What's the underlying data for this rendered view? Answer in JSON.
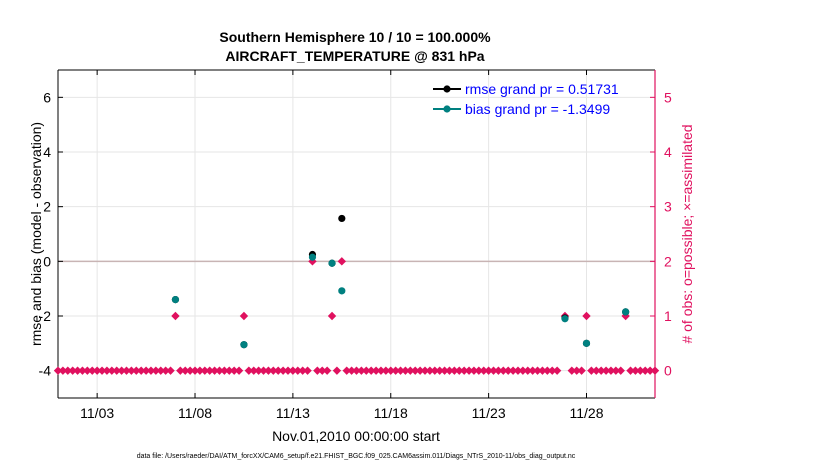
{
  "colors": {
    "rmse": "#000000",
    "bias": "#008080",
    "obs": "#E0115F",
    "legend_text": "#0000FF",
    "zero_line": "#C8B4B4",
    "grid": "#E6E6E6"
  },
  "chart_data": {
    "type": "scatter",
    "title_line1": "Southern Hemisphere 10 / 10 = 100.000%",
    "title_line2": "AIRCRAFT_TEMPERATURE @ 831 hPa",
    "xlabel": "Nov.01,2010 00:00:00 start",
    "ylabel_left": "rmse and bias (model - observation)",
    "ylabel_right": "# of obs: o=possible; ×=assimilated",
    "xlim": [
      1,
      31.5
    ],
    "ylim_left": [
      -5,
      7
    ],
    "ylim_right": [
      -0.5,
      5.5
    ],
    "x_ticks": [
      3,
      8,
      13,
      18,
      23,
      28
    ],
    "x_tick_labels": [
      "11/03",
      "11/08",
      "11/13",
      "11/18",
      "11/23",
      "11/28"
    ],
    "y_left_ticks": [
      -4,
      -2,
      0,
      2,
      4,
      6
    ],
    "y_left_tick_labels": [
      "-4",
      "-2",
      "0",
      "2",
      "4",
      "6"
    ],
    "y_right_ticks": [
      0,
      1,
      2,
      3,
      4,
      5
    ],
    "y_right_tick_labels": [
      "0",
      "1",
      "2",
      "3",
      "4",
      "5"
    ],
    "legend": [
      {
        "name": "rmse",
        "label": "rmse grand pr = 0.51731"
      },
      {
        "name": "bias",
        "label": "bias grand pr = -1.3499"
      }
    ],
    "series": [
      {
        "name": "rmse",
        "axis": "left",
        "x": [
          7.0,
          10.5,
          14.0,
          15.0,
          15.5,
          26.9,
          28.0,
          30.0
        ],
        "values": [
          -1.4,
          -3.05,
          0.25,
          -0.07,
          1.57,
          -2.07,
          -3.0,
          -1.85
        ]
      },
      {
        "name": "bias",
        "axis": "left",
        "x": [
          7.0,
          10.5,
          14.0,
          15.0,
          15.5,
          26.9,
          28.0,
          30.0
        ],
        "values": [
          -1.4,
          -3.05,
          0.15,
          -0.07,
          -1.08,
          -2.1,
          -3.0,
          -1.85
        ]
      },
      {
        "name": "obs_assimilated",
        "axis": "right",
        "x_start": 1.0,
        "x_step": 0.25,
        "x_end": 31.5,
        "default_value": 0,
        "nonzero": [
          {
            "x": 7.0,
            "value": 1
          },
          {
            "x": 10.5,
            "value": 1
          },
          {
            "x": 14.0,
            "value": 2
          },
          {
            "x": 15.0,
            "value": 1
          },
          {
            "x": 15.5,
            "value": 2
          },
          {
            "x": 26.9,
            "value": 1
          },
          {
            "x": 28.0,
            "value": 1
          },
          {
            "x": 30.0,
            "value": 1
          }
        ],
        "gaps": [
          7.0,
          10.5,
          14.0,
          15.0,
          15.5,
          26.9,
          28.0,
          30.0
        ]
      }
    ]
  },
  "footer": "data file: /Users/raeder/DAI/ATM_forcXX/CAM6_setup/f.e21.FHIST_BGC.f09_025.CAM6assim.011/Diags_NTrS_2010-11/obs_diag_output.nc"
}
